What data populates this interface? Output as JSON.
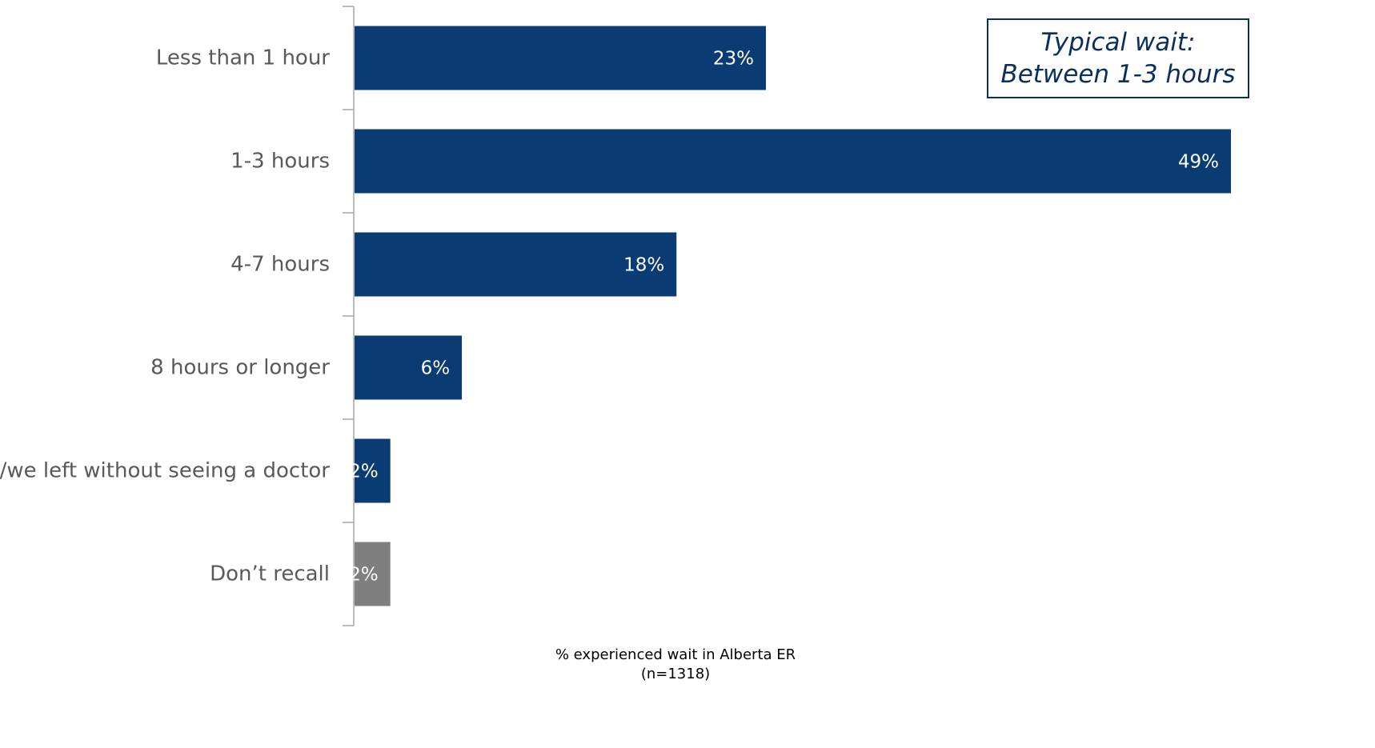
{
  "chart_data": {
    "type": "bar",
    "orientation": "horizontal",
    "categories": [
      "Less than 1 hour",
      "1-3 hours",
      "4-7 hours",
      "8 hours or longer",
      "I/we left without seeing a doctor",
      "Don’t recall"
    ],
    "values": [
      23,
      49,
      18,
      6,
      2,
      2
    ],
    "data_labels": [
      "23%",
      "49%",
      "18%",
      "6%",
      "2%",
      "2%"
    ],
    "colors": [
      "#0a3b73",
      "#0a3b73",
      "#0a3b73",
      "#0a3b73",
      "#0a3b73",
      "#7f7f7f"
    ],
    "xlabel": "% experienced wait in Alberta ER",
    "xlabel_sub": "(n=1318)",
    "ylabel": "",
    "xlim": [
      0,
      49
    ],
    "grid": false,
    "annotation": {
      "line1": "Typical wait:",
      "line2": "Between 1-3 hours",
      "color": "#0a2f5c"
    },
    "axis_color": "#a6a6a6"
  }
}
